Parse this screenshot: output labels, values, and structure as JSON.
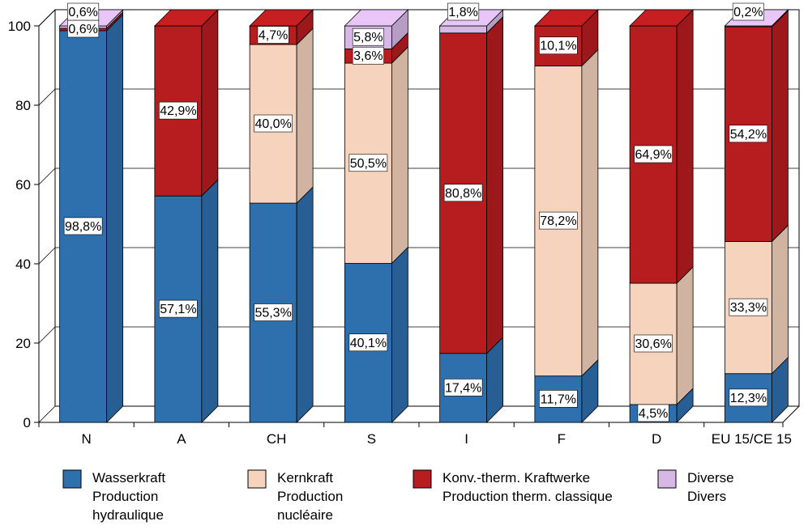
{
  "chart_data": {
    "type": "bar",
    "stacked": true,
    "three_d": true,
    "ylim": [
      0,
      100
    ],
    "yticks": [
      0,
      20,
      40,
      60,
      80,
      100
    ],
    "grid": "horizontal",
    "legend_position": "bottom",
    "categories": [
      "N",
      "A",
      "CH",
      "S",
      "I",
      "F",
      "D",
      "EU 15/CE 15"
    ],
    "series": [
      {
        "name": "Wasserkraft\nProduction hydraulique",
        "lines": [
          "Wasserkraft",
          "Production",
          "hydraulique"
        ],
        "color": "#2e6fae",
        "values": [
          98.8,
          57.1,
          55.3,
          40.1,
          17.4,
          11.7,
          4.5,
          12.3
        ],
        "labels": [
          "98,8%",
          "57,1%",
          "55,3%",
          "40,1%",
          "17,4%",
          "11,7%",
          "4,5%",
          "12,3%"
        ]
      },
      {
        "name": "Kernkraft\nProduction nucléaire",
        "lines": [
          "Kernkraft",
          "Production",
          "nucléaire"
        ],
        "color": "#f5d3bd",
        "values": [
          0,
          0,
          40.0,
          50.5,
          0,
          78.2,
          30.6,
          33.3
        ],
        "labels": [
          "",
          "",
          "40,0%",
          "50,5%",
          "",
          "78,2%",
          "30,6%",
          "33,3%"
        ]
      },
      {
        "name": "Konv.-therm. Kraftwerke\nProduction therm. classique",
        "lines": [
          "Konv.-therm. Kraftwerke",
          "Production therm. classique"
        ],
        "color": "#b71c1f",
        "values": [
          0.6,
          42.9,
          4.7,
          3.6,
          80.8,
          10.1,
          64.9,
          54.2
        ],
        "labels": [
          "0,6%",
          "42,9%",
          "4,7%",
          "3,6%",
          "80,8%",
          "10,1%",
          "64,9%",
          "54,2%"
        ]
      },
      {
        "name": "Diverse\nDivers",
        "lines": [
          "Diverse",
          "Divers"
        ],
        "color": "#d7b7e6",
        "values": [
          0.6,
          0,
          0,
          5.8,
          1.8,
          0,
          0,
          0.2
        ],
        "labels": [
          "0,6%",
          "",
          "",
          "5,8%",
          "1,8%",
          "",
          "",
          "0,2%"
        ]
      }
    ]
  }
}
